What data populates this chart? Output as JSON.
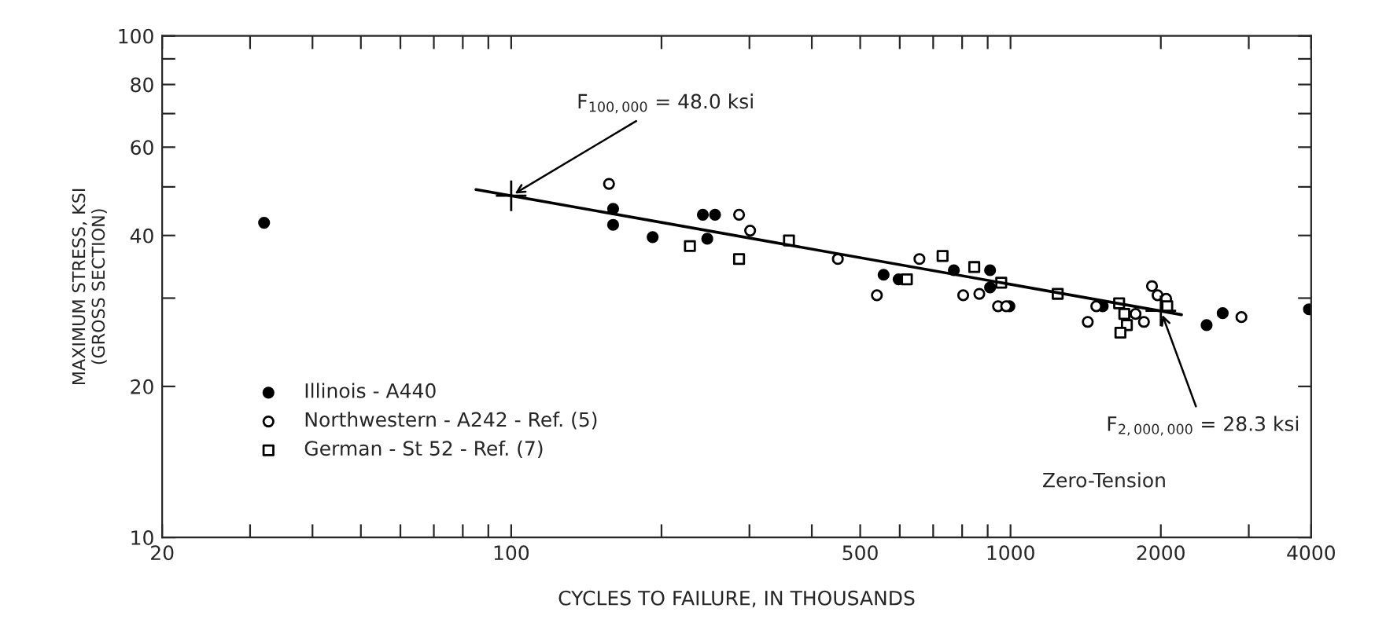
{
  "chart_data": {
    "type": "scatter",
    "xlabel": "CYCLES TO FAILURE, IN THOUSANDS",
    "ylabel": "MAXIMUM STRESS, KSI\n(GROSS SECTION)",
    "log": "xy",
    "xlim": [
      20,
      4000
    ],
    "ylim": [
      10,
      100
    ],
    "xticks": [
      20,
      {
        "value": 30,
        "label": null
      },
      {
        "value": 40,
        "label": null
      },
      {
        "value": 50,
        "label": null
      },
      {
        "value": 60,
        "label": null
      },
      {
        "value": 70,
        "label": null
      },
      {
        "value": 80,
        "label": null
      },
      {
        "value": 90,
        "label": null
      },
      100,
      {
        "value": 200,
        "label": null
      },
      {
        "value": 300,
        "label": null
      },
      {
        "value": 400,
        "label": null
      },
      500,
      {
        "value": 600,
        "label": null
      },
      {
        "value": 700,
        "label": null
      },
      {
        "value": 800,
        "label": null
      },
      {
        "value": 900,
        "label": null
      },
      1000,
      2000,
      {
        "value": 3000,
        "label": null
      },
      4000
    ],
    "yticks": [
      10,
      20,
      {
        "value": 30,
        "label": null
      },
      40,
      {
        "value": 50,
        "label": null
      },
      60,
      {
        "value": 70,
        "label": null
      },
      80,
      {
        "value": 90,
        "label": null
      },
      100
    ],
    "legend": "bottom left",
    "grid": false,
    "series": [
      {
        "name": "Illinois - A440",
        "color": "#000000",
        "marker": "circle",
        "x": [
          32,
          160,
          160,
          192,
          242,
          256,
          247,
          557,
          597,
          770,
          910,
          910,
          995,
          1530,
          2470,
          2660,
          3960
        ],
        "values": [
          42.4,
          45.2,
          42,
          39.7,
          44,
          44,
          39.4,
          33.4,
          32.7,
          34.1,
          34.1,
          31.5,
          28.9,
          28.9,
          26.5,
          28,
          28.5
        ]
      },
      {
        "name": "Northwestern - A242 - Ref. (5)",
        "color": "#000000",
        "marker": "circle-open",
        "x": [
          157,
          286,
          301,
          451,
          540,
          657,
          804,
          866,
          944,
          980,
          1428,
          1485,
          1780,
          1850,
          1920,
          1970,
          2050,
          2900
        ],
        "values": [
          50.7,
          44,
          40.9,
          35.9,
          30.4,
          35.9,
          30.4,
          30.6,
          28.9,
          28.9,
          26.9,
          28.9,
          27.9,
          26.9,
          31.7,
          30.4,
          29.9,
          27.5
        ]
      },
      {
        "name": "German - St 52 - Ref. (7)",
        "color": "#000000",
        "marker": "square-open",
        "x": [
          228,
          286,
          360,
          620,
          731,
          846,
          958,
          1243,
          1650,
          1690,
          1710,
          1660,
          2060
        ],
        "values": [
          38.1,
          35.9,
          39.1,
          32.7,
          36.4,
          34.6,
          32.2,
          30.6,
          29.3,
          27.9,
          26.5,
          25.6,
          28.9
        ]
      },
      {
        "type": "line",
        "color": "#000000",
        "line_style": "solid",
        "marker": "none",
        "x": [
          85,
          2200
        ],
        "values": [
          49.4,
          27.8
        ]
      }
    ],
    "annotations": [
      {
        "text": "F$_{100,000}$ = 48.0 ksi",
        "x": 100,
        "y": 48.0
      },
      {
        "text": "F$_{2,000,000}$ = 28.3 ksi",
        "x": 2000,
        "y": 28.3
      },
      "Zero-Tension"
    ]
  }
}
